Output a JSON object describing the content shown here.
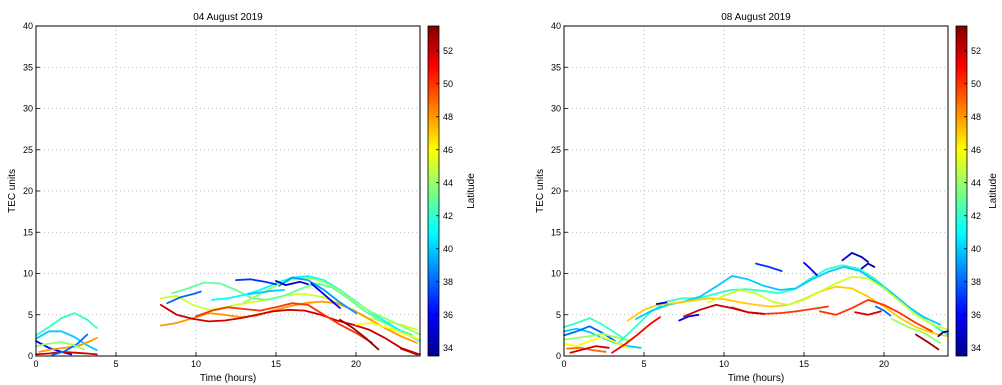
{
  "chart_data": [
    {
      "type": "scatter",
      "title": "04 August 2019",
      "xlabel": "Time (hours)",
      "ylabel": "TEC units",
      "xlim": [
        0,
        24
      ],
      "ylim": [
        0,
        40
      ],
      "xticks": [
        0,
        5,
        10,
        15,
        20
      ],
      "yticks": [
        0,
        5,
        10,
        15,
        20,
        25,
        30,
        35,
        40
      ],
      "grid": true,
      "colorbar": {
        "label": "Latitude",
        "range": [
          33.5,
          53.5
        ],
        "ticks": [
          34,
          36,
          38,
          40,
          42,
          44,
          46,
          48,
          50,
          52
        ]
      },
      "series": [
        {
          "lat": 42,
          "x": [
            0.0,
            0.8,
            1.6,
            2.4,
            3.2,
            3.8
          ],
          "y": [
            2.5,
            3.5,
            4.6,
            5.2,
            4.4,
            3.4
          ]
        },
        {
          "lat": 40,
          "x": [
            0.0,
            0.8,
            1.6,
            2.4,
            3.2,
            3.8
          ],
          "y": [
            2.1,
            3.0,
            3.0,
            2.3,
            1.3,
            0.7
          ]
        },
        {
          "lat": 36,
          "x": [
            0.0,
            0.8,
            1.6,
            2.2
          ],
          "y": [
            1.8,
            1.0,
            0.5,
            0.2
          ]
        },
        {
          "lat": 52,
          "x": [
            0.0,
            0.8,
            1.6,
            2.4,
            3.2,
            3.8
          ],
          "y": [
            0.2,
            0.3,
            0.5,
            0.4,
            0.3,
            0.2
          ]
        },
        {
          "lat": 48,
          "x": [
            0.2,
            1.0,
            1.8,
            2.6,
            3.4,
            3.8
          ],
          "y": [
            0.5,
            0.8,
            1.0,
            1.2,
            1.8,
            2.2
          ]
        },
        {
          "lat": 38,
          "x": [
            1.0,
            1.8,
            2.6,
            3.2
          ],
          "y": [
            0.1,
            0.6,
            1.5,
            2.6
          ]
        },
        {
          "lat": 44,
          "x": [
            0.0,
            0.8,
            1.6,
            2.4,
            3.0
          ],
          "y": [
            1.2,
            1.5,
            1.7,
            1.3,
            0.8
          ]
        },
        {
          "lat": 45,
          "x": [
            7.8,
            8.8,
            9.8,
            10.8,
            11.8,
            12.8,
            13.8,
            14.8,
            15.8,
            16.8,
            17.8,
            18.8,
            19.8,
            20.8,
            21.8,
            22.8,
            23.8
          ],
          "y": [
            7.0,
            7.3,
            6.2,
            5.6,
            5.9,
            6.3,
            6.6,
            7.0,
            7.4,
            7.5,
            7.2,
            6.5,
            5.5,
            4.6,
            4.2,
            3.8,
            3.2
          ]
        },
        {
          "lat": 43,
          "x": [
            8.5,
            9.5,
            10.5,
            11.5,
            12.5,
            13.5,
            14.5,
            15.5,
            16.5,
            17.5,
            18.5,
            19.5,
            20.5,
            21.5,
            22.5,
            23.5
          ],
          "y": [
            7.6,
            8.2,
            8.9,
            8.8,
            8.0,
            7.0,
            6.8,
            7.3,
            8.1,
            8.8,
            8.3,
            7.0,
            5.5,
            4.3,
            3.3,
            2.6
          ]
        },
        {
          "lat": 48,
          "x": [
            7.8,
            8.8,
            9.8,
            10.8,
            11.8,
            12.8,
            13.8,
            14.8,
            15.8,
            16.8,
            17.8,
            18.8,
            19.8,
            20.8,
            21.8,
            22.8,
            23.8
          ],
          "y": [
            3.7,
            4.0,
            4.6,
            5.2,
            5.0,
            4.7,
            4.9,
            5.5,
            6.0,
            6.4,
            6.6,
            6.4,
            5.6,
            4.5,
            3.4,
            2.4,
            1.6
          ]
        },
        {
          "lat": 52,
          "x": [
            7.8,
            8.8,
            9.8,
            10.8,
            11.8,
            12.8,
            13.8,
            14.8,
            15.8,
            16.8,
            17.8,
            18.8,
            19.8,
            20.8,
            21.8,
            22.8,
            23.8
          ],
          "y": [
            6.2,
            5.0,
            4.5,
            4.2,
            4.3,
            4.6,
            5.0,
            5.4,
            5.6,
            5.5,
            5.0,
            4.3,
            3.8,
            3.2,
            2.2,
            1.0,
            0.3
          ]
        },
        {
          "lat": 50,
          "x": [
            10.0,
            11.0,
            12.0,
            13.0,
            14.0,
            15.0,
            16.0,
            17.0,
            18.0,
            19.0,
            20.0,
            21.0
          ],
          "y": [
            4.8,
            5.5,
            5.9,
            5.7,
            5.5,
            5.9,
            6.4,
            6.2,
            5.0,
            3.8,
            2.8,
            1.6
          ]
        },
        {
          "lat": 41,
          "x": [
            11.0,
            12.0,
            13.0,
            14.0,
            15.0,
            16.0,
            17.0,
            18.0,
            19.0,
            20.0,
            21.0,
            22.0,
            23.0,
            24.0
          ],
          "y": [
            6.8,
            7.0,
            7.4,
            8.0,
            8.8,
            9.5,
            9.7,
            9.2,
            8.0,
            6.6,
            5.2,
            4.0,
            2.8,
            1.8
          ]
        },
        {
          "lat": 44,
          "x": [
            13.0,
            14.0,
            15.0,
            16.0,
            17.0,
            18.0,
            19.0,
            20.0,
            21.0,
            22.0,
            23.0,
            24.0
          ],
          "y": [
            6.5,
            7.5,
            8.5,
            9.3,
            9.5,
            9.0,
            7.9,
            6.5,
            5.3,
            4.4,
            3.5,
            2.6
          ]
        },
        {
          "lat": 39,
          "x": [
            15.2,
            16.0,
            17.0,
            18.0,
            19.0,
            20.0
          ],
          "y": [
            8.5,
            9.5,
            9.2,
            8.0,
            6.5,
            5.2
          ]
        },
        {
          "lat": 37,
          "x": [
            12.5,
            13.4,
            14.3,
            15.0
          ],
          "y": [
            9.2,
            9.3,
            9.0,
            8.7
          ]
        },
        {
          "lat": 35,
          "x": [
            15.0,
            15.6,
            16.5,
            17.0
          ],
          "y": [
            9.1,
            8.6,
            9.0,
            8.7
          ]
        },
        {
          "lat": 36,
          "x": [
            17.2,
            17.8,
            18.4,
            19.0
          ],
          "y": [
            8.8,
            7.8,
            6.8,
            5.8
          ]
        },
        {
          "lat": 38,
          "x": [
            8.2,
            9.0,
            9.8,
            10.3
          ],
          "y": [
            6.4,
            7.1,
            7.5,
            7.8
          ]
        },
        {
          "lat": 40,
          "x": [
            13.3,
            14.0,
            14.8,
            15.5
          ],
          "y": [
            7.5,
            7.7,
            7.9,
            8.0
          ]
        },
        {
          "lat": 46,
          "x": [
            20.0,
            21.0,
            22.0,
            23.0,
            24.0
          ],
          "y": [
            3.8,
            4.0,
            3.4,
            2.7,
            2.0
          ]
        },
        {
          "lat": 34,
          "x": [
            23.5,
            23.8
          ],
          "y": [
            0.4,
            0.2
          ]
        },
        {
          "lat": 52,
          "x": [
            22.8,
            23.5,
            24.0
          ],
          "y": [
            0.9,
            0.4,
            0.2
          ]
        },
        {
          "lat": 53,
          "x": [
            19.0,
            19.8,
            20.6,
            21.4
          ],
          "y": [
            4.4,
            3.4,
            2.2,
            0.8
          ]
        }
      ]
    },
    {
      "type": "scatter",
      "title": "08 August 2019",
      "xlabel": "Time (hours)",
      "ylabel": "TEC units",
      "xlim": [
        0,
        24
      ],
      "ylim": [
        0,
        40
      ],
      "xticks": [
        0,
        5,
        10,
        15,
        20
      ],
      "yticks": [
        0,
        5,
        10,
        15,
        20,
        25,
        30,
        35,
        40
      ],
      "grid": true,
      "colorbar": {
        "label": "Latitude",
        "range": [
          33.5,
          53.5
        ],
        "ticks": [
          34,
          36,
          38,
          40,
          42,
          44,
          46,
          48,
          50,
          52
        ]
      },
      "series": [
        {
          "lat": 42,
          "x": [
            0.0,
            0.8,
            1.6,
            2.4,
            3.2,
            4.0
          ],
          "y": [
            3.5,
            4.0,
            4.6,
            3.8,
            2.8,
            1.8
          ]
        },
        {
          "lat": 40,
          "x": [
            0.0,
            0.8,
            1.6,
            2.4,
            3.2,
            4.0,
            4.8
          ],
          "y": [
            3.0,
            3.3,
            2.9,
            2.2,
            1.6,
            1.2,
            1.0
          ]
        },
        {
          "lat": 38,
          "x": [
            0.0,
            0.8,
            1.6,
            2.4,
            3.2
          ],
          "y": [
            2.5,
            3.0,
            3.6,
            2.8,
            1.8
          ]
        },
        {
          "lat": 46,
          "x": [
            0.0,
            0.8,
            1.6,
            2.4,
            3.2,
            4.0
          ],
          "y": [
            1.5,
            1.2,
            1.8,
            2.3,
            1.7,
            1.0
          ]
        },
        {
          "lat": 49,
          "x": [
            0.2,
            1.0,
            1.8,
            2.6
          ],
          "y": [
            0.9,
            1.0,
            0.7,
            0.5
          ]
        },
        {
          "lat": 52,
          "x": [
            0.4,
            1.2,
            2.0,
            2.8
          ],
          "y": [
            0.4,
            0.8,
            1.2,
            1.0
          ]
        },
        {
          "lat": 44,
          "x": [
            0.0,
            0.8,
            1.6,
            2.4,
            3.2,
            4.0
          ],
          "y": [
            2.0,
            2.2,
            2.4,
            2.7,
            2.3,
            1.9
          ]
        },
        {
          "lat": 51,
          "x": [
            3.0,
            3.8,
            4.6,
            5.4,
            6.0
          ],
          "y": [
            0.4,
            1.4,
            2.6,
            3.9,
            4.7
          ]
        },
        {
          "lat": 42,
          "x": [
            3.4,
            4.4,
            5.4,
            6.4,
            7.4,
            8.4,
            9.4,
            10.4,
            11.4,
            12.4,
            13.4,
            14.4,
            15.4,
            16.4,
            17.4,
            18.4,
            19.4,
            20.4,
            21.4,
            22.4,
            23.4,
            24.0
          ],
          "y": [
            1.6,
            3.4,
            5.3,
            6.6,
            7.0,
            7.0,
            7.5,
            8.0,
            8.1,
            7.9,
            7.6,
            8.1,
            9.4,
            10.5,
            11.0,
            10.6,
            9.4,
            7.8,
            6.2,
            4.6,
            3.3,
            2.6
          ]
        },
        {
          "lat": 40,
          "x": [
            4.5,
            5.5,
            6.5,
            7.5,
            8.5,
            9.5,
            10.5,
            11.5,
            12.5,
            13.5,
            14.5,
            15.5,
            16.5,
            17.5,
            18.5,
            19.5,
            20.5,
            21.5,
            22.5,
            23.5
          ],
          "y": [
            4.5,
            5.5,
            6.2,
            6.6,
            7.2,
            8.4,
            9.7,
            9.3,
            8.5,
            8.0,
            8.2,
            9.3,
            10.2,
            10.8,
            10.3,
            9.0,
            7.6,
            6.0,
            4.7,
            3.8
          ]
        },
        {
          "lat": 47,
          "x": [
            4.0,
            5.0,
            6.0,
            7.0,
            8.0,
            9.0,
            10.0,
            11.0,
            12.0,
            13.0,
            14.0,
            15.0,
            16.0,
            17.0,
            18.0,
            19.0,
            20.0,
            21.0,
            22.0,
            23.0,
            24.0
          ],
          "y": [
            4.3,
            5.6,
            6.3,
            6.4,
            6.7,
            7.0,
            6.9,
            6.5,
            6.2,
            6.0,
            6.2,
            6.9,
            7.8,
            8.4,
            8.2,
            7.2,
            6.0,
            4.6,
            3.5,
            2.8,
            2.4
          ]
        },
        {
          "lat": 45,
          "x": [
            9.0,
            10.0,
            11.0,
            12.0,
            13.0,
            14.0,
            15.0,
            16.0,
            17.0,
            18.0,
            19.0,
            20.0,
            21.0,
            22.0,
            23.0,
            24.0
          ],
          "y": [
            6.5,
            7.3,
            8.0,
            7.6,
            6.6,
            6.2,
            6.8,
            7.8,
            8.8,
            9.6,
            9.4,
            8.2,
            6.6,
            5.0,
            3.8,
            3.2
          ]
        },
        {
          "lat": 50,
          "x": [
            10.5,
            11.5,
            12.5,
            13.5,
            14.5,
            15.5,
            16.5
          ],
          "y": [
            5.9,
            5.3,
            5.1,
            5.2,
            5.4,
            5.7,
            6.0
          ]
        },
        {
          "lat": 52,
          "x": [
            7.5,
            8.5,
            9.5,
            10.5,
            11.5,
            12.5
          ],
          "y": [
            4.8,
            5.6,
            6.2,
            5.8,
            5.3,
            5.1
          ]
        },
        {
          "lat": 50,
          "x": [
            16.0,
            17.0,
            18.0,
            19.0,
            20.0,
            21.0,
            22.0,
            23.0
          ],
          "y": [
            5.4,
            5.0,
            5.8,
            6.8,
            6.2,
            5.2,
            4.0,
            3.0
          ]
        },
        {
          "lat": 52,
          "x": [
            18.2,
            19.0,
            19.8
          ],
          "y": [
            5.3,
            5.0,
            5.4
          ]
        },
        {
          "lat": 53,
          "x": [
            22.0,
            22.8,
            23.4
          ],
          "y": [
            2.6,
            1.6,
            0.8
          ]
        },
        {
          "lat": 35,
          "x": [
            5.8,
            6.4
          ],
          "y": [
            6.3,
            6.5
          ]
        },
        {
          "lat": 37,
          "x": [
            12.0,
            12.8,
            13.6
          ],
          "y": [
            11.2,
            10.8,
            10.3
          ]
        },
        {
          "lat": 36,
          "x": [
            7.2,
            7.8,
            8.4
          ],
          "y": [
            4.3,
            4.8,
            5.0
          ]
        },
        {
          "lat": 35,
          "x": [
            17.4,
            18.0,
            18.6,
            19.0
          ],
          "y": [
            11.6,
            12.5,
            12.0,
            11.4
          ]
        },
        {
          "lat": 34,
          "x": [
            18.6,
            19.0,
            19.4
          ],
          "y": [
            10.6,
            11.2,
            10.8
          ]
        },
        {
          "lat": 36,
          "x": [
            15.0,
            15.4,
            15.8
          ],
          "y": [
            11.3,
            10.6,
            9.8
          ]
        },
        {
          "lat": 38,
          "x": [
            19.5,
            20.0,
            20.4
          ],
          "y": [
            6.0,
            5.5,
            4.9
          ]
        },
        {
          "lat": 34,
          "x": [
            23.4,
            23.7,
            24.0
          ],
          "y": [
            2.4,
            2.9,
            3.0
          ]
        },
        {
          "lat": 44,
          "x": [
            20.5,
            21.5,
            22.5,
            23.5
          ],
          "y": [
            4.5,
            3.5,
            2.8,
            1.6
          ]
        }
      ]
    }
  ]
}
